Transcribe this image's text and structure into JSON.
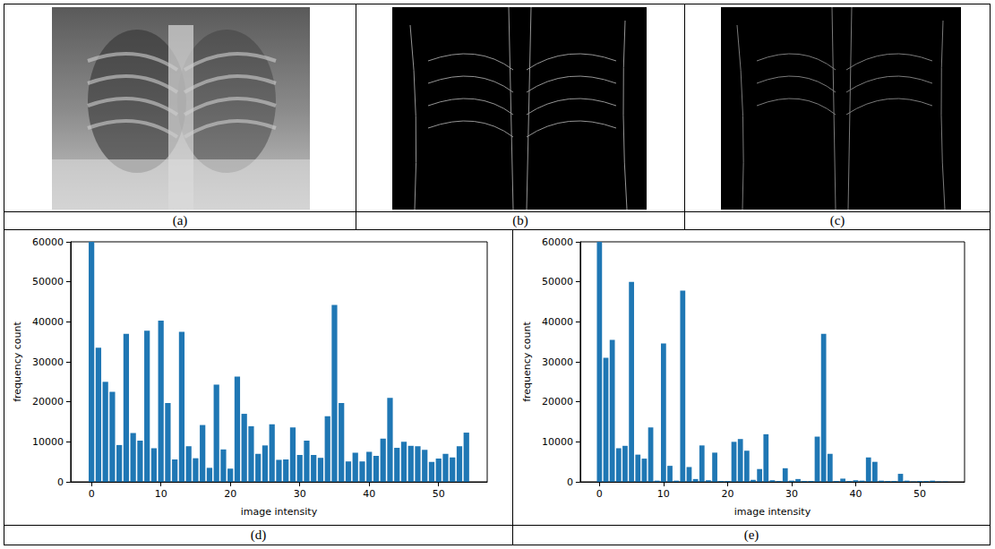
{
  "panel_labels": [
    "(a)",
    "(b)",
    "(c)",
    "(d)",
    "(e)"
  ],
  "chart_data": [
    {
      "type": "bar",
      "x": [
        0,
        1,
        2,
        3,
        4,
        5,
        6,
        7,
        8,
        9,
        10,
        11,
        12,
        13,
        14,
        15,
        16,
        17,
        18,
        19,
        20,
        21,
        22,
        23,
        24,
        25,
        26,
        27,
        28,
        29,
        30,
        31,
        32,
        33,
        34,
        35,
        36,
        37,
        38,
        39,
        40,
        41,
        42,
        43,
        44,
        45,
        46,
        47,
        48,
        49,
        50,
        51,
        52,
        53,
        54
      ],
      "values": [
        60000,
        33500,
        25000,
        22500,
        9200,
        37000,
        12200,
        10300,
        37800,
        8400,
        40300,
        19700,
        5600,
        37500,
        8900,
        5900,
        14200,
        3500,
        24300,
        8100,
        3300,
        26300,
        17000,
        13900,
        7000,
        9100,
        14400,
        5500,
        5600,
        13600,
        6700,
        10300,
        6700,
        6000,
        16400,
        44200,
        19700,
        5100,
        7300,
        5100,
        7500,
        6500,
        10800,
        21000,
        8500,
        10000,
        9000,
        8900,
        8000,
        5000,
        5800,
        7000,
        6100,
        8900,
        12300
      ],
      "color": "#1f77b4",
      "xlabel": "image intensity",
      "ylabel": "frequency count",
      "xlim": [
        -3,
        57
      ],
      "xticks": [
        0,
        10,
        20,
        30,
        40,
        50
      ],
      "ylim": [
        0,
        60000
      ],
      "yticks": [
        0,
        10000,
        20000,
        30000,
        40000,
        50000,
        60000
      ],
      "grid": false
    },
    {
      "type": "bar",
      "x": [
        0,
        1,
        2,
        3,
        4,
        5,
        6,
        7,
        8,
        9,
        10,
        11,
        12,
        13,
        14,
        15,
        16,
        17,
        18,
        19,
        20,
        21,
        22,
        23,
        24,
        25,
        26,
        27,
        28,
        29,
        30,
        31,
        32,
        33,
        34,
        35,
        36,
        37,
        38,
        39,
        40,
        41,
        42,
        43,
        44,
        45,
        46,
        47,
        48,
        49,
        50,
        51,
        52,
        53,
        54
      ],
      "values": [
        60000,
        31000,
        35500,
        8400,
        9000,
        50000,
        6800,
        5800,
        13600,
        300,
        34600,
        4000,
        300,
        47800,
        3700,
        700,
        9100,
        400,
        7300,
        200,
        200,
        10000,
        10700,
        7800,
        500,
        3200,
        11900,
        400,
        200,
        3400,
        300,
        700,
        200,
        200,
        11300,
        37000,
        7000,
        200,
        800,
        200,
        400,
        300,
        6100,
        5000,
        300,
        200,
        200,
        2000,
        300,
        100,
        200,
        200,
        300,
        100,
        100
      ],
      "color": "#1f77b4",
      "xlabel": "image intensity",
      "ylabel": "frequency count",
      "xlim": [
        -3,
        57
      ],
      "xticks": [
        0,
        10,
        20,
        30,
        40,
        50
      ],
      "ylim": [
        0,
        60000
      ],
      "yticks": [
        0,
        10000,
        20000,
        30000,
        40000,
        50000,
        60000
      ],
      "grid": false
    }
  ]
}
